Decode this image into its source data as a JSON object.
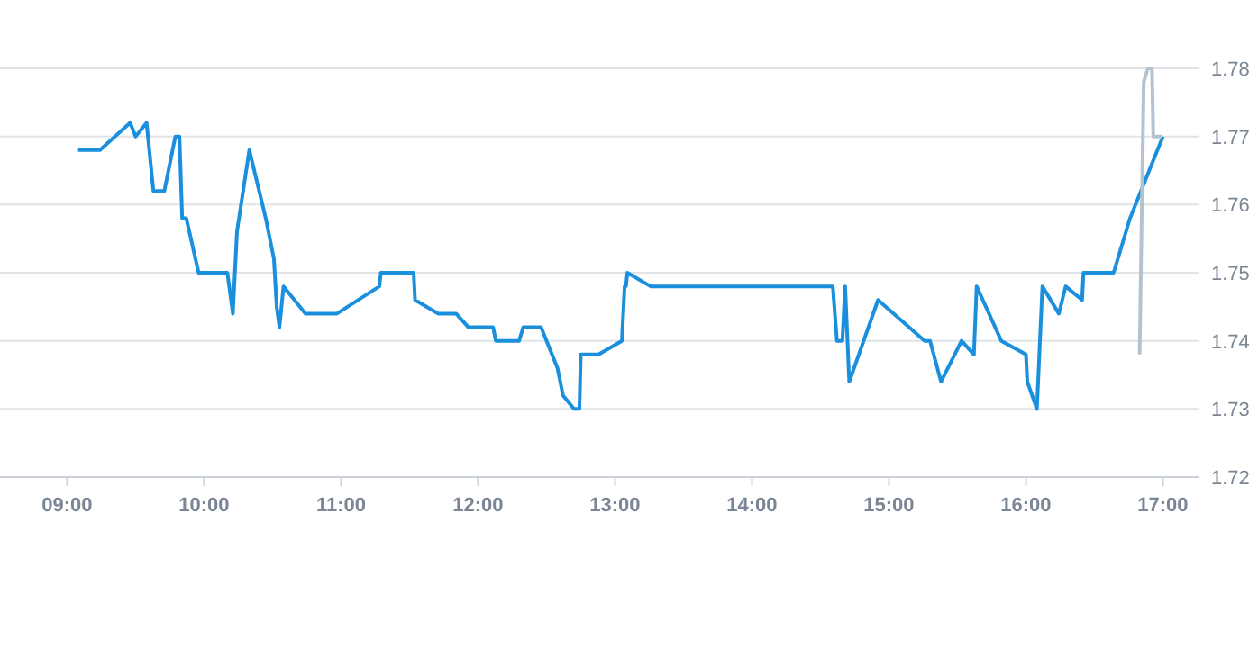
{
  "chart_data": {
    "type": "line",
    "xlim": [
      8.51,
      17.26
    ],
    "ylim": [
      1.72,
      1.78
    ],
    "xticks": [
      {
        "value": 9,
        "label": "09:00"
      },
      {
        "value": 10,
        "label": "10:00"
      },
      {
        "value": 11,
        "label": "11:00"
      },
      {
        "value": 12,
        "label": "12:00"
      },
      {
        "value": 13,
        "label": "13:00"
      },
      {
        "value": 14,
        "label": "14:00"
      },
      {
        "value": 15,
        "label": "15:00"
      },
      {
        "value": 16,
        "label": "16:00"
      },
      {
        "value": 17,
        "label": "17:00"
      }
    ],
    "yticks": [
      1.72,
      1.73,
      1.74,
      1.75,
      1.76,
      1.77,
      1.78
    ],
    "grid": "y",
    "marker": "none",
    "line_style": "solid",
    "series": [
      {
        "color": "#1a8fdd",
        "x": [
          9.08,
          9.24,
          9.46,
          9.5,
          9.58,
          9.63,
          9.71,
          9.79,
          9.82,
          9.84,
          9.87,
          9.96,
          10.17,
          10.21,
          10.24,
          10.33,
          10.45,
          10.51,
          10.53,
          10.55,
          10.58,
          10.74,
          10.97,
          11.28,
          11.29,
          11.53,
          11.54,
          11.71,
          11.84,
          11.93,
          12.11,
          12.13,
          12.3,
          12.33,
          12.46,
          12.54,
          12.58,
          12.62,
          12.7,
          12.74,
          12.75,
          12.88,
          13.05,
          13.07,
          13.08,
          13.09,
          13.26,
          14.59,
          14.62,
          14.66,
          14.68,
          14.71,
          14.92,
          15.26,
          15.3,
          15.38,
          15.53,
          15.62,
          15.64,
          15.82,
          16.0,
          16.01,
          16.08,
          16.12,
          16.24,
          16.29,
          16.41,
          16.42,
          16.64,
          16.76,
          17.0
        ],
        "values": [
          1.768,
          1.768,
          1.772,
          1.77,
          1.772,
          1.762,
          1.762,
          1.77,
          1.77,
          1.758,
          1.758,
          1.75,
          1.75,
          1.744,
          1.756,
          1.768,
          1.758,
          1.752,
          1.745,
          1.742,
          1.748,
          1.744,
          1.744,
          1.748,
          1.75,
          1.75,
          1.746,
          1.744,
          1.744,
          1.742,
          1.742,
          1.74,
          1.74,
          1.742,
          1.742,
          1.738,
          1.736,
          1.732,
          1.73,
          1.73,
          1.738,
          1.738,
          1.74,
          1.748,
          1.748,
          1.75,
          1.748,
          1.748,
          1.74,
          1.74,
          1.748,
          1.734,
          1.746,
          1.74,
          1.74,
          1.734,
          1.74,
          1.738,
          1.748,
          1.74,
          1.738,
          1.734,
          1.73,
          1.748,
          1.744,
          1.748,
          1.746,
          1.75,
          1.75,
          1.758,
          1.77
        ]
      },
      {
        "color": "#b4c3cf",
        "x": [
          16.83,
          16.86,
          16.89,
          16.92,
          16.93,
          16.99
        ],
        "values": [
          1.738,
          1.778,
          1.78,
          1.78,
          1.77,
          1.77
        ]
      }
    ]
  }
}
